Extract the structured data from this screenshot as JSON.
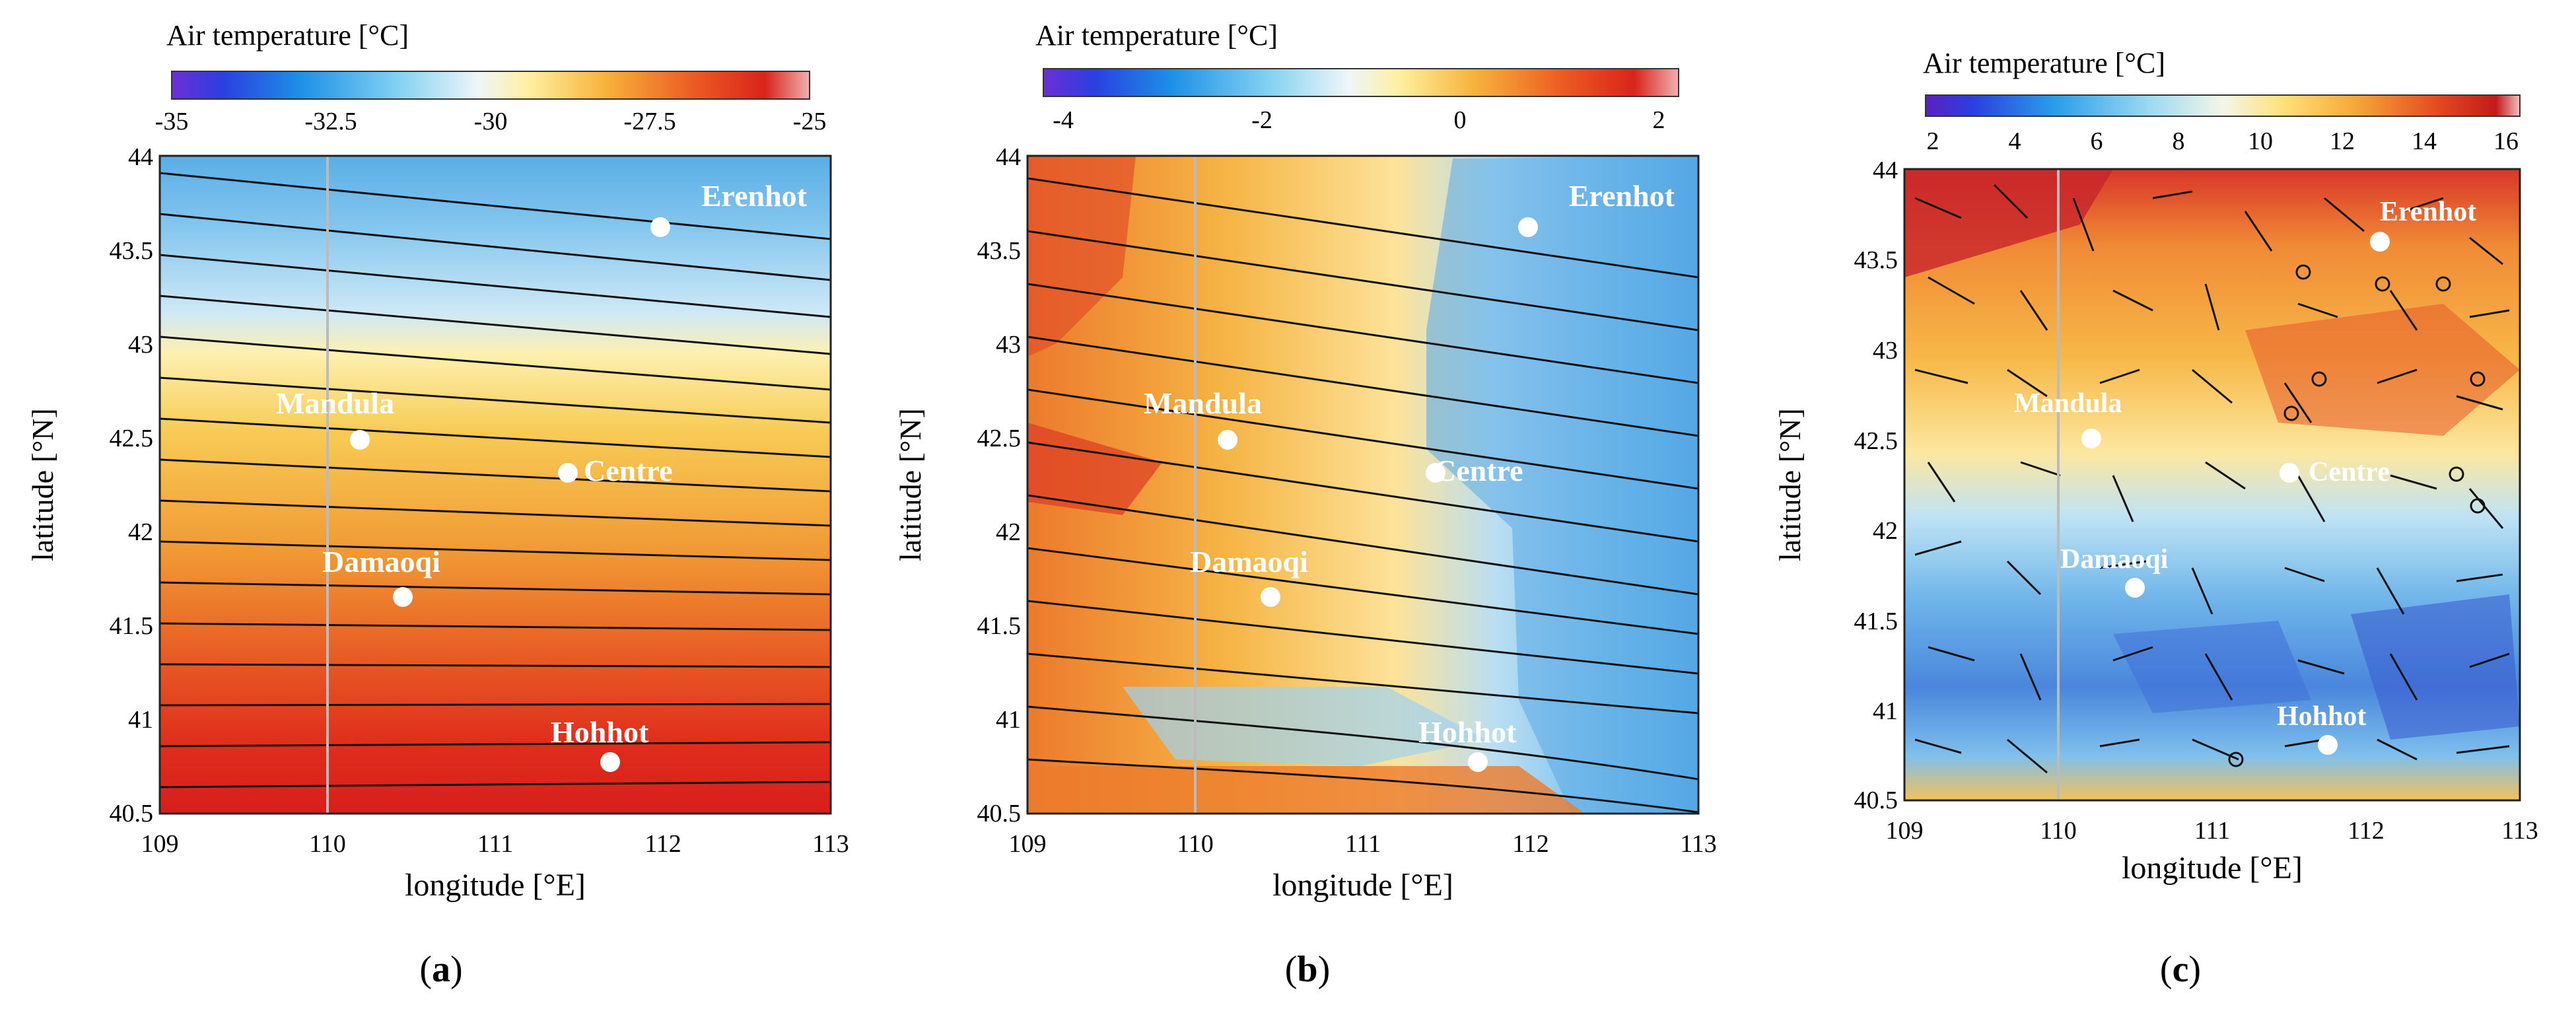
{
  "figure": {
    "panels": [
      {
        "id": "a",
        "caption_open": "(",
        "caption_letter": "a",
        "caption_close": ")",
        "colorbar": {
          "title": "Air temperature [°C]",
          "min": -35,
          "max": -25,
          "ticks": [
            -35,
            -32.5,
            -30,
            -27.5,
            -25
          ],
          "tick_labels": [
            "-35",
            "-32.5",
            "-30",
            "-27.5",
            "-25"
          ]
        },
        "axes": {
          "xlabel": "longitude [°E]",
          "ylabel": "latitude [°N]",
          "xlim": [
            109,
            113
          ],
          "ylim": [
            40.5,
            44
          ],
          "xticks": [
            "109",
            "110",
            "111",
            "112",
            "113"
          ],
          "yticks": [
            "40.5",
            "41",
            "41.5",
            "42",
            "42.5",
            "43",
            "43.5",
            "44"
          ]
        },
        "stations": [
          {
            "name": "Erenhot",
            "lon": 112.0,
            "lat": 43.62
          },
          {
            "name": "Mandula",
            "lon": 110.2,
            "lat": 42.5
          },
          {
            "name": "Centre",
            "lon": 111.45,
            "lat": 42.32
          },
          {
            "name": "Damaoqi",
            "lon": 110.45,
            "lat": 41.67
          },
          {
            "name": "Hohhot",
            "lon": 111.7,
            "lat": 40.8
          }
        ]
      },
      {
        "id": "b",
        "caption_open": "(",
        "caption_letter": "b",
        "caption_close": ")",
        "colorbar": {
          "title": "Air temperature [°C]",
          "min": -4.2,
          "max": 2.2,
          "ticks": [
            -4,
            -2,
            0,
            2
          ],
          "tick_labels": [
            "-4",
            "-2",
            "0",
            "2"
          ]
        },
        "axes": {
          "xlabel": "longitude [°E]",
          "ylabel": "latitude [°N]",
          "xlim": [
            109,
            113
          ],
          "ylim": [
            40.5,
            44
          ],
          "xticks": [
            "109",
            "110",
            "111",
            "112",
            "113"
          ],
          "yticks": [
            "40.5",
            "41",
            "41.5",
            "42",
            "42.5",
            "43",
            "43.5",
            "44"
          ]
        },
        "stations": [
          {
            "name": "Erenhot",
            "lon": 112.0,
            "lat": 43.62
          },
          {
            "name": "Mandula",
            "lon": 110.2,
            "lat": 42.5
          },
          {
            "name": "Centre",
            "lon": 111.45,
            "lat": 42.32
          },
          {
            "name": "Damaoqi",
            "lon": 110.45,
            "lat": 41.67
          },
          {
            "name": "Hohhot",
            "lon": 111.7,
            "lat": 40.8
          }
        ]
      },
      {
        "id": "c",
        "caption_open": "(",
        "caption_letter": "c",
        "caption_close": ")",
        "colorbar": {
          "title": "Air temperature [°C]",
          "min": 2,
          "max": 16,
          "ticks": [
            2,
            4,
            6,
            8,
            10,
            12,
            14,
            16
          ],
          "tick_labels": [
            "2",
            "4",
            "6",
            "8",
            "10",
            "12",
            "14",
            "16"
          ]
        },
        "axes": {
          "xlabel": "longitude [°E]",
          "ylabel": "latitude [°N]",
          "xlim": [
            109,
            113
          ],
          "ylim": [
            40.5,
            44
          ],
          "xticks": [
            "109",
            "110",
            "111",
            "112",
            "113"
          ],
          "yticks": [
            "40.5",
            "41",
            "41.5",
            "42",
            "42.5",
            "43",
            "43.5",
            "44"
          ]
        },
        "stations": [
          {
            "name": "Erenhot",
            "lon": 112.0,
            "lat": 43.62
          },
          {
            "name": "Mandula",
            "lon": 110.2,
            "lat": 42.5
          },
          {
            "name": "Centre",
            "lon": 111.45,
            "lat": 42.32
          },
          {
            "name": "Damaoqi",
            "lon": 110.45,
            "lat": 41.67
          },
          {
            "name": "Hohhot",
            "lon": 111.7,
            "lat": 40.8
          }
        ]
      }
    ]
  }
}
